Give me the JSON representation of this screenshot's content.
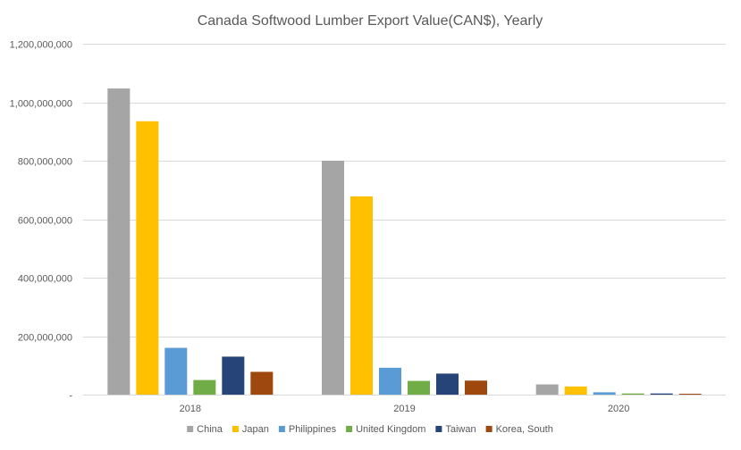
{
  "chart_data": {
    "type": "bar",
    "title": "Canada Softwood Lumber Export Value(CAN$), Yearly",
    "xlabel": "",
    "ylabel": "",
    "ylim": [
      0,
      1200000000
    ],
    "yticks": [
      0,
      200000000,
      400000000,
      600000000,
      800000000,
      1000000000,
      1200000000
    ],
    "ytick_labels": [
      "-",
      "200,000,000",
      "400,000,000",
      "600,000,000",
      "800,000,000",
      "1,000,000,000",
      "1,200,000,000"
    ],
    "categories": [
      "2018",
      "2019",
      "2020"
    ],
    "grid": true,
    "legend_position": "bottom",
    "series": [
      {
        "name": "China",
        "color": "#a5a5a5",
        "values": [
          1047000000,
          800000000,
          35000000
        ]
      },
      {
        "name": "Japan",
        "color": "#ffc000",
        "values": [
          935000000,
          678000000,
          28000000
        ]
      },
      {
        "name": "Philippines",
        "color": "#5b9bd5",
        "values": [
          160000000,
          92000000,
          8000000
        ]
      },
      {
        "name": "United Kingdom",
        "color": "#70ad47",
        "values": [
          50000000,
          47000000,
          4000000
        ]
      },
      {
        "name": "Taiwan",
        "color": "#264478",
        "values": [
          130000000,
          72000000,
          4000000
        ]
      },
      {
        "name": "Korea, South",
        "color": "#9e480e",
        "values": [
          78000000,
          48000000,
          3000000
        ]
      }
    ],
    "colors": {
      "grid": "#d9d9d9",
      "axis": "#d9d9d9",
      "text": "#595959"
    }
  }
}
